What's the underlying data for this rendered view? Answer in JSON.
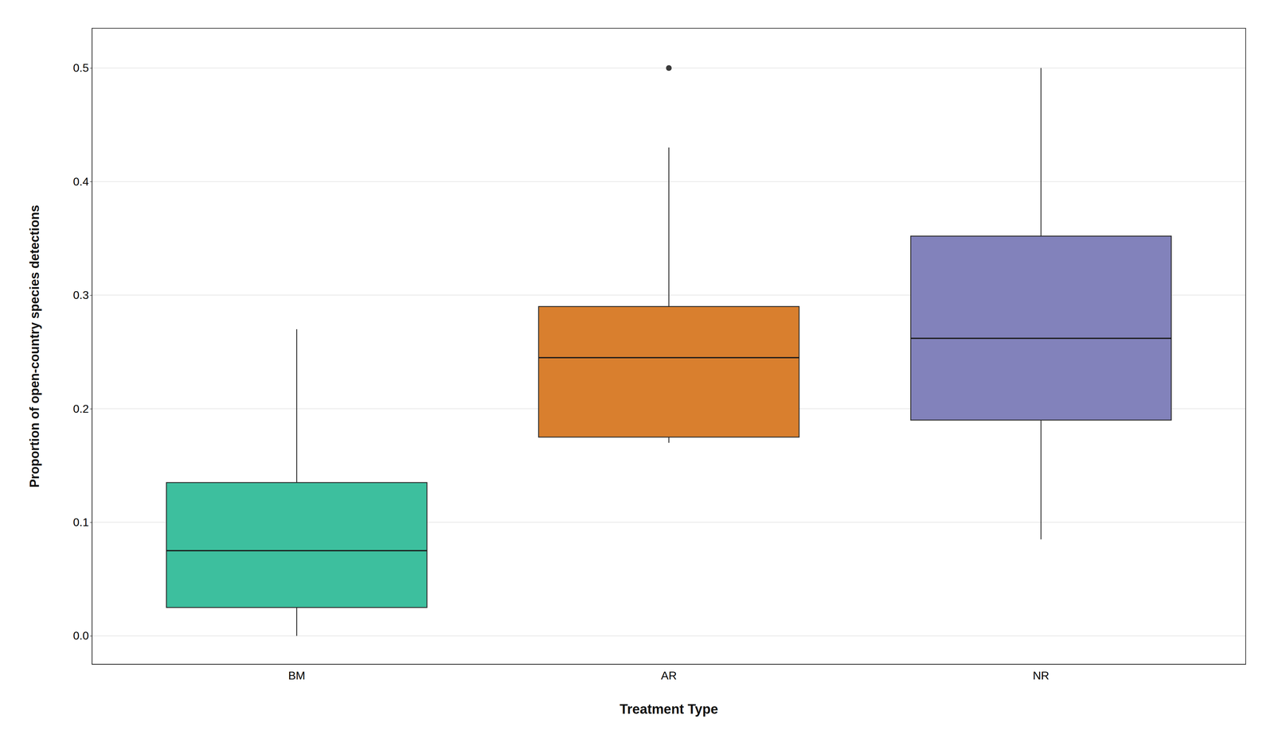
{
  "chart_data": {
    "type": "box",
    "xlabel": "Treatment Type",
    "ylabel": "Proportion of open-country species detections",
    "categories": [
      "BM",
      "AR",
      "NR"
    ],
    "colors": [
      "#3dbf9e",
      "#d97f2e",
      "#8282bb"
    ],
    "boxes": [
      {
        "q1": 0.025,
        "median": 0.075,
        "q3": 0.135,
        "whisker_low": 0.0,
        "whisker_high": 0.27,
        "fliers": []
      },
      {
        "q1": 0.175,
        "median": 0.245,
        "q3": 0.29,
        "whisker_low": 0.17,
        "whisker_high": 0.43,
        "fliers": [
          0.5
        ]
      },
      {
        "q1": 0.19,
        "median": 0.262,
        "q3": 0.352,
        "whisker_low": 0.085,
        "whisker_high": 0.5,
        "fliers": []
      }
    ],
    "ylim": [
      -0.025,
      0.535
    ],
    "yticks": [
      {
        "value": 0.0,
        "label": "0.0"
      },
      0.1,
      0.2,
      0.3,
      0.4,
      0.5
    ],
    "grid": true
  }
}
